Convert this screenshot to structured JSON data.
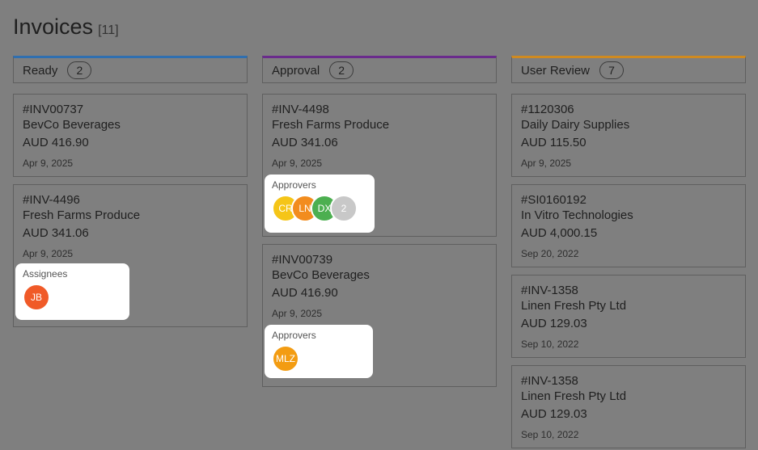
{
  "page": {
    "title": "Invoices",
    "count": "[11]"
  },
  "columns": [
    {
      "name": "Ready",
      "count": "2",
      "color": "#2f6fb0",
      "cards": [
        {
          "number": "#INV00737",
          "vendor": "BevCo Beverages",
          "amount": "AUD 416.90",
          "date": "Apr 9, 2025"
        },
        {
          "number": "#INV-4496",
          "vendor": "Fresh Farms Produce",
          "amount": "AUD 341.06",
          "date": "Apr 9, 2025",
          "popover": {
            "label": "Assignees",
            "avatars": [
              "JB"
            ]
          }
        }
      ]
    },
    {
      "name": "Approval",
      "count": "2",
      "color": "#6a2b8c",
      "cards": [
        {
          "number": "#INV-4498",
          "vendor": "Fresh Farms Produce",
          "amount": "AUD 341.06",
          "date": "Apr 9, 2025",
          "popover": {
            "label": "Approvers",
            "avatars": [
              "CR",
              "LN",
              "DX",
              "2"
            ]
          }
        },
        {
          "number": "#INV00739",
          "vendor": "BevCo Beverages",
          "amount": "AUD 416.90",
          "date": "Apr 9, 2025",
          "popover": {
            "label": "Approvers",
            "avatars": [
              "MLZ"
            ]
          }
        }
      ]
    },
    {
      "name": "User Review",
      "count": "7",
      "color": "#d08a1f",
      "cards": [
        {
          "number": "#1120306",
          "vendor": "Daily Dairy Supplies",
          "amount": "AUD 115.50",
          "date": "Apr 9, 2025"
        },
        {
          "number": "#SI0160192",
          "vendor": "In Vitro Technologies",
          "amount": "AUD 4,000.15",
          "date": "Sep 20, 2022"
        },
        {
          "number": "#INV-1358",
          "vendor": "Linen Fresh Pty Ltd",
          "amount": "AUD 129.03",
          "date": "Sep 10, 2022"
        },
        {
          "number": "#INV-1358",
          "vendor": "Linen Fresh Pty Ltd",
          "amount": "AUD 129.03",
          "date": "Sep 10, 2022"
        }
      ]
    }
  ],
  "avatar_colors": {
    "JB": "#f05a28",
    "CR": "#f5c518",
    "LN": "#f28c1e",
    "DX": "#4caf50",
    "2": "#c8c8c8",
    "MLZ": "#f39c12"
  }
}
